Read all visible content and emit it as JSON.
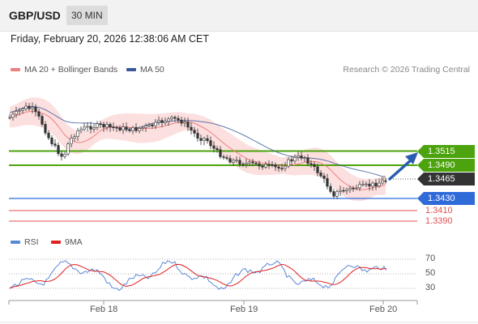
{
  "header": {
    "symbol": "GBP/USD",
    "interval": "30 MIN",
    "datetime": "Friday, February 20, 2026 12:38:06 AM CET"
  },
  "legend": {
    "ma20_label": "MA 20 + Bollinger Bands",
    "ma50_label": "MA 50",
    "copyright": "Research © 2026 Trading Central"
  },
  "rsi_legend": {
    "rsi_label": "RSI",
    "ma_label": "9MA"
  },
  "colors": {
    "green_level": "#4ca30d",
    "blue_level": "#2f6ad9",
    "red_level": "#e05050",
    "current_price": "#333333",
    "arrow": "#2a5db0",
    "ma20": "#f08080",
    "ma50": "#3b5998",
    "band_fill": "#fcd9d9",
    "rsi_line": "#5a87d6",
    "rsi_ma": "#e02020"
  },
  "levels": [
    {
      "price": "1.3515",
      "kind": "resistance"
    },
    {
      "price": "1.3490",
      "kind": "resistance"
    },
    {
      "price": "1.3465",
      "kind": "current"
    },
    {
      "price": "1.3430",
      "kind": "pivot"
    },
    {
      "price": "1.3410",
      "kind": "support"
    },
    {
      "price": "1.3390",
      "kind": "support"
    }
  ],
  "rsi_axis": [
    "70",
    "50",
    "30"
  ],
  "x_axis": [
    "Feb 18",
    "Feb 19",
    "Feb 20"
  ]
}
